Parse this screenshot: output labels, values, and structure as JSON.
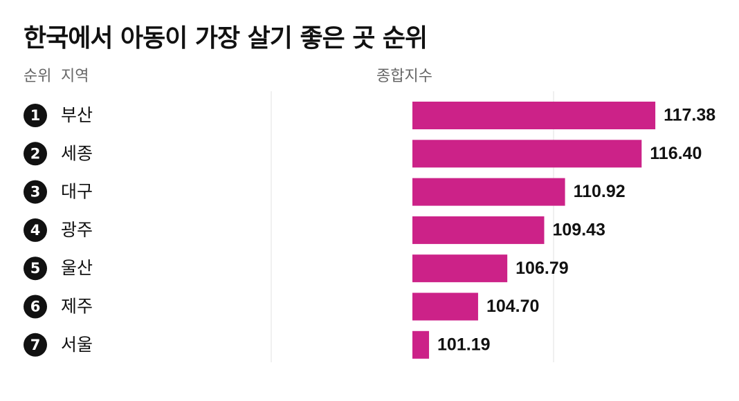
{
  "chart_data": {
    "type": "bar",
    "orientation": "horizontal",
    "title": "한국에서 아동이 가장 살기 좋은 곳 순위",
    "column_headers": {
      "rank": "순위",
      "region": "지역",
      "value": "종합지수"
    },
    "ranks": [
      "1",
      "2",
      "3",
      "4",
      "5",
      "6",
      "7"
    ],
    "categories": [
      "부산",
      "세종",
      "대구",
      "광주",
      "울산",
      "제주",
      "서울"
    ],
    "values": [
      117.38,
      116.4,
      110.92,
      109.43,
      106.79,
      104.7,
      101.19
    ],
    "value_labels": [
      "117.38",
      "116.40",
      "110.92",
      "109.43",
      "106.79",
      "104.70",
      "101.19"
    ],
    "xlim": [
      100,
      118
    ],
    "bar_color": "#cc2288",
    "grid": true,
    "legend": "none"
  }
}
